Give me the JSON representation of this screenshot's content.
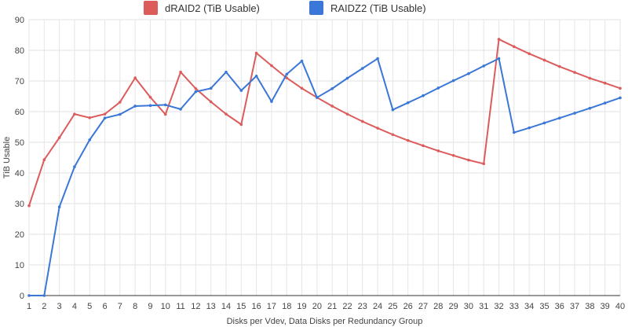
{
  "chart_data": {
    "type": "line",
    "title": "",
    "xlabel": "Disks per Vdev, Data Disks per Redundancy Group",
    "ylabel": "TiB Usable",
    "ylim": [
      0,
      90
    ],
    "yticks": [
      0,
      10,
      20,
      30,
      40,
      50,
      60,
      70,
      80,
      90
    ],
    "x": [
      1,
      2,
      3,
      4,
      5,
      6,
      7,
      8,
      9,
      10,
      11,
      12,
      13,
      14,
      15,
      16,
      17,
      18,
      19,
      20,
      21,
      22,
      23,
      24,
      25,
      26,
      27,
      28,
      29,
      30,
      31,
      32,
      33,
      34,
      35,
      36,
      37,
      38,
      39,
      40
    ],
    "grid": true,
    "legend_position": "top",
    "series": [
      {
        "name": "dRAID2 (TiB Usable)",
        "color": "#dc5c5c",
        "values": [
          29.3,
          44.3,
          51.5,
          59.2,
          58.0,
          59.2,
          63.1,
          71.0,
          64.7,
          59.1,
          72.9,
          67.5,
          63.2,
          59.2,
          55.8,
          79.1,
          75.0,
          71.0,
          67.6,
          64.6,
          61.8,
          59.2,
          56.8,
          54.6,
          52.5,
          50.6,
          48.9,
          47.2,
          45.7,
          44.2,
          43.0,
          83.6,
          81.2,
          78.9,
          76.8,
          74.7,
          72.8,
          70.9,
          69.3,
          67.6
        ]
      },
      {
        "name": "RAIDZ2 (TiB Usable)",
        "color": "#3a77d6",
        "values": [
          0.0,
          0.0,
          28.9,
          42.0,
          50.8,
          57.9,
          59.1,
          61.8,
          62.0,
          62.2,
          60.8,
          66.5,
          67.6,
          72.9,
          66.9,
          71.6,
          63.3,
          72.2,
          76.5,
          64.6,
          67.5,
          70.9,
          74.1,
          77.3,
          60.6,
          62.9,
          65.2,
          67.7,
          70.1,
          72.4,
          74.9,
          77.3,
          53.2,
          54.7,
          56.3,
          57.9,
          59.5,
          61.1,
          62.8,
          64.5
        ]
      }
    ]
  }
}
